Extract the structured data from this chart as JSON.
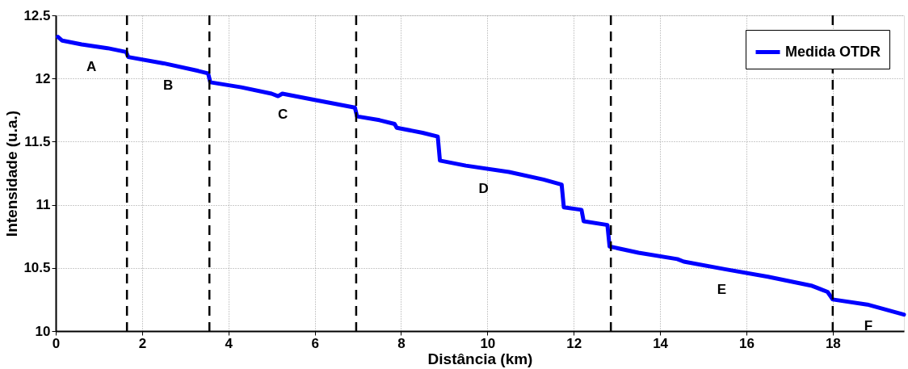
{
  "chart_data": {
    "type": "line",
    "xlabel": "Distância (km)",
    "ylabel": "Intensidade (u.a.)",
    "xlim": [
      0,
      19.65
    ],
    "ylim": [
      10,
      12.5
    ],
    "xticks": [
      0,
      2,
      4,
      6,
      8,
      10,
      12,
      14,
      16,
      18
    ],
    "yticks": [
      10,
      10.5,
      11,
      11.5,
      12,
      12.5
    ],
    "grid": true,
    "legend": "top right",
    "line_style": "solid",
    "series": [
      {
        "name": "Medida OTDR",
        "color": "#0000ff",
        "x": [
          0.05,
          0.15,
          0.6,
          1.2,
          1.63,
          1.68,
          2.5,
          3.3,
          3.53,
          3.58,
          4.3,
          5.0,
          5.15,
          5.25,
          6.0,
          6.93,
          6.98,
          7.5,
          7.85,
          7.9,
          8.5,
          8.85,
          8.9,
          9.5,
          10.5,
          11.3,
          11.72,
          11.77,
          12.18,
          12.23,
          12.78,
          12.83,
          13.5,
          14.4,
          14.55,
          15.5,
          16.5,
          17.5,
          17.88,
          18.0,
          18.8,
          19.65
        ],
        "values": [
          12.33,
          12.3,
          12.27,
          12.24,
          12.21,
          12.17,
          12.12,
          12.06,
          12.04,
          11.97,
          11.93,
          11.88,
          11.86,
          11.88,
          11.83,
          11.77,
          11.7,
          11.67,
          11.64,
          11.61,
          11.57,
          11.54,
          11.35,
          11.31,
          11.26,
          11.2,
          11.16,
          10.98,
          10.96,
          10.87,
          10.84,
          10.67,
          10.62,
          10.57,
          10.55,
          10.49,
          10.43,
          10.36,
          10.31,
          10.25,
          10.21,
          10.13
        ]
      }
    ],
    "ref_lines": [
      {
        "axis": "x",
        "value": 1.65,
        "color": "#000000",
        "line_style": "dashed"
      },
      {
        "axis": "x",
        "value": 3.56,
        "color": "#000000",
        "line_style": "dashed"
      },
      {
        "axis": "x",
        "value": 6.96,
        "color": "#000000",
        "line_style": "dashed"
      },
      {
        "axis": "x",
        "value": 12.86,
        "color": "#000000",
        "line_style": "dashed"
      },
      {
        "axis": "x",
        "value": 18.0,
        "color": "#000000",
        "line_style": "dashed"
      }
    ],
    "annotations": [
      "A",
      "B",
      "C",
      "D",
      "E",
      "F"
    ]
  }
}
